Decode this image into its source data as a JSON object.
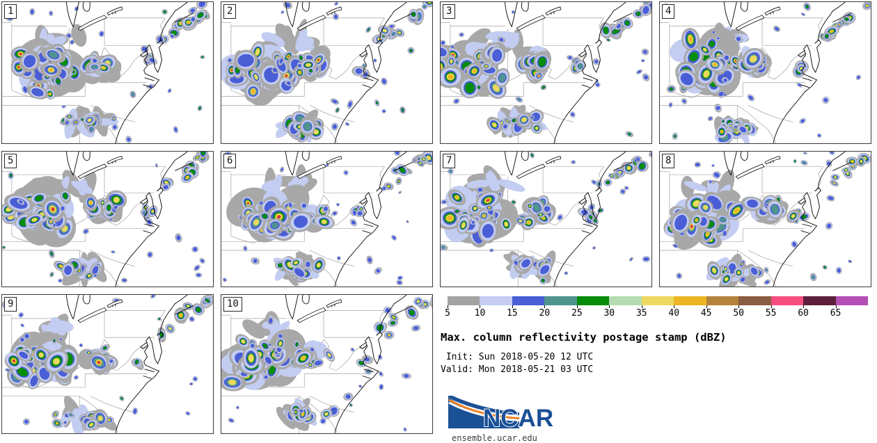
{
  "figure": {
    "kind": "ensemble postage stamp reflectivity maps",
    "member_count": 10
  },
  "panels": [
    {
      "label": "1"
    },
    {
      "label": "2"
    },
    {
      "label": "3"
    },
    {
      "label": "4"
    },
    {
      "label": "5"
    },
    {
      "label": "6"
    },
    {
      "label": "7"
    },
    {
      "label": "8"
    },
    {
      "label": "9"
    },
    {
      "label": "10"
    }
  ],
  "legend": {
    "title": "Max. column reflectivity postage stamp (dBZ)",
    "init_line": " Init: Sun 2018-05-20 12 UTC",
    "valid_line": "Valid: Mon 2018-05-21 03 UTC",
    "unit": "dBZ",
    "ticks": [
      "5",
      "10",
      "15",
      "20",
      "25",
      "30",
      "35",
      "40",
      "45",
      "50",
      "55",
      "60",
      "65"
    ],
    "colors": [
      "#a3a3a3",
      "#c5cdf2",
      "#4a5ed6",
      "#4f948f",
      "#078c07",
      "#b5dcb0",
      "#edd95f",
      "#edb524",
      "#b5823d",
      "#8a5c41",
      "#f54d80",
      "#5c1f3d",
      "#b44eb4"
    ]
  },
  "map_palette": {
    "light": "#a8a8a8",
    "lavender": "#c3cdf2",
    "blue": "#4a5ed6",
    "teal": "#4f948f",
    "green": "#078c07",
    "yellow": "#edd95f",
    "amber": "#edb524",
    "red": "#d43246",
    "state_line": "#8f8f8f",
    "coast_line": "#000000"
  },
  "logo": {
    "text": "NCAR",
    "url": "ensemble.ucar.edu",
    "blue": "#1a5096",
    "orange": "#f58220"
  }
}
